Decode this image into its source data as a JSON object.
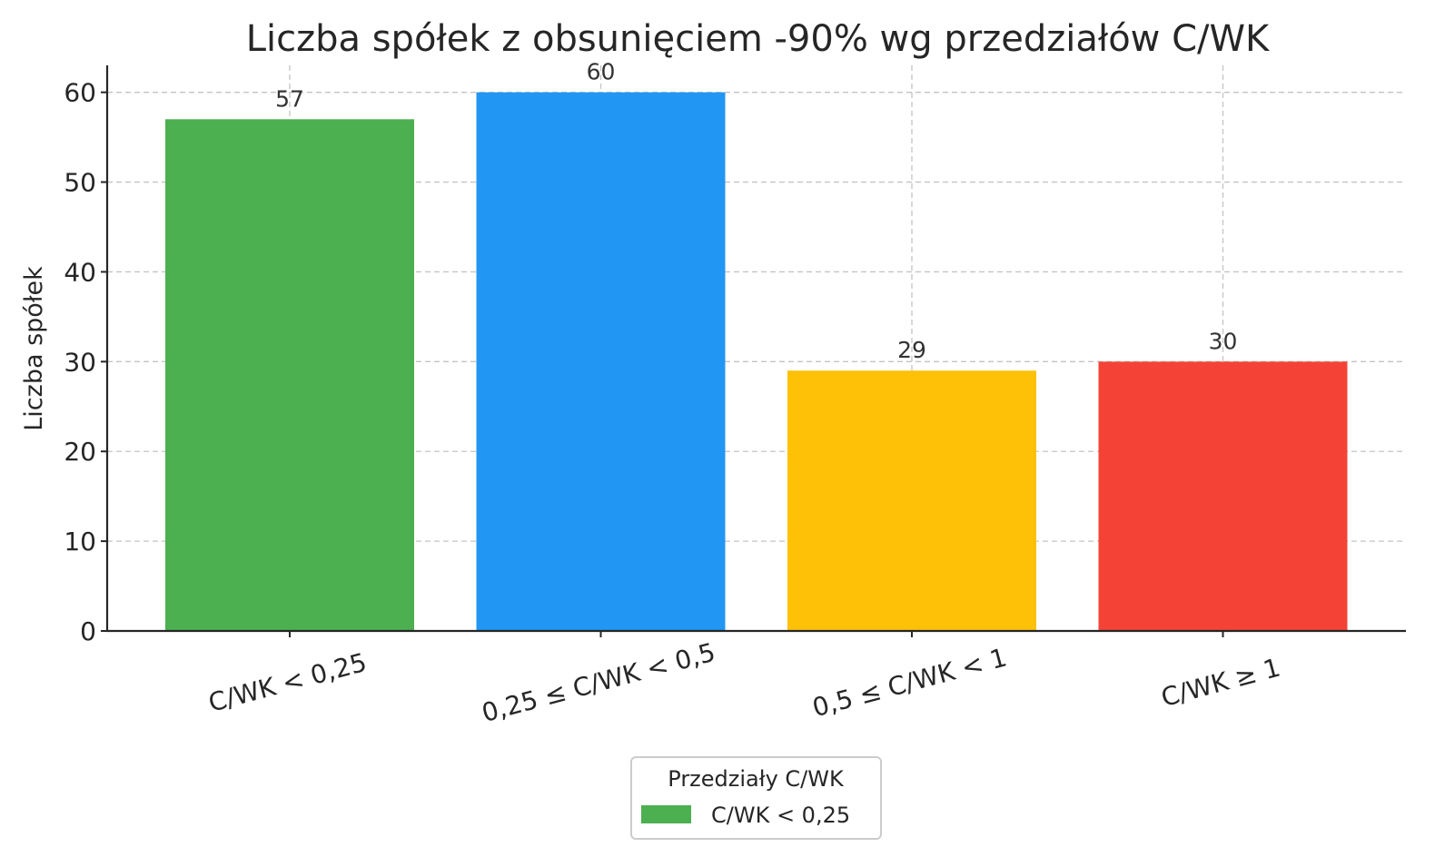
{
  "chart_data": {
    "type": "bar",
    "title": "Liczba spółek z obsunięciem -90% wg przedziałów C/WK",
    "xlabel": "",
    "ylabel": "Liczba spółek",
    "categories": [
      "C/WK < 0,25",
      "0,25 ≤ C/WK < 0,5",
      "0,5 ≤ C/WK < 1",
      "C/WK ≥ 1"
    ],
    "values": [
      57,
      60,
      29,
      30
    ],
    "value_labels": [
      "57",
      "60",
      "29",
      "30"
    ],
    "colors": [
      "#4caf50",
      "#2196f3",
      "#ffc107",
      "#f44336"
    ],
    "ylim": [
      0,
      63
    ],
    "yticks": [
      0,
      10,
      20,
      30,
      40,
      50,
      60
    ],
    "grid": true,
    "legend": {
      "title": "Przedziały C/WK",
      "entries": [
        {
          "label": "C/WK < 0,25",
          "color": "#4caf50"
        }
      ],
      "placement": "bottom-center"
    }
  }
}
